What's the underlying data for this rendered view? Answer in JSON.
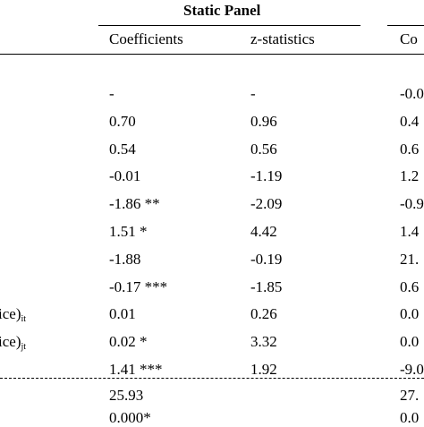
{
  "header": {
    "panel_title": "Static Panel",
    "columns": [
      "Coefficients",
      "z-statistics",
      "Co"
    ]
  },
  "rows": [
    {
      "label": "",
      "sub": "",
      "coef": "-",
      "z": "-",
      "c3": "-0.0"
    },
    {
      "label": "",
      "sub": "",
      "coef": "0.70",
      "z": "0.96",
      "c3": "0.4"
    },
    {
      "label": "",
      "sub": "",
      "coef": "0.54",
      "z": "0.56",
      "c3": "0.6"
    },
    {
      "label": "",
      "sub": "",
      "coef": "-0.01",
      "z": "-1.19",
      "c3": "1.2"
    },
    {
      "label": "",
      "sub": "",
      "coef": "-1.86 **",
      "z": "-2.09",
      "c3": "-0.9"
    },
    {
      "label": "",
      "sub": "",
      "coef": "1.51 *",
      "z": "4.42",
      "c3": "1.4"
    },
    {
      "label": "",
      "sub": "",
      "coef": "-1.88",
      "z": "-0.19",
      "c3": "21."
    },
    {
      "label": "",
      "sub": "",
      "coef": "-0.17 ***",
      "z": "-1.85",
      "c3": "0.6"
    },
    {
      "label": "ice)",
      "sub": "it",
      "coef": "0.01",
      "z": "0.26",
      "c3": "0.0"
    },
    {
      "label": "ice)",
      "sub": "jt",
      "coef": "0.02 *",
      "z": "3.32",
      "c3": "0.0"
    },
    {
      "label": "",
      "sub": "",
      "coef": "1.41 ***",
      "z": "1.92",
      "c3": "-9.0"
    }
  ],
  "footer_rows": [
    {
      "coef": "25.93",
      "c3": "27."
    },
    {
      "coef": "0.000*",
      "c3": "0.0"
    }
  ]
}
